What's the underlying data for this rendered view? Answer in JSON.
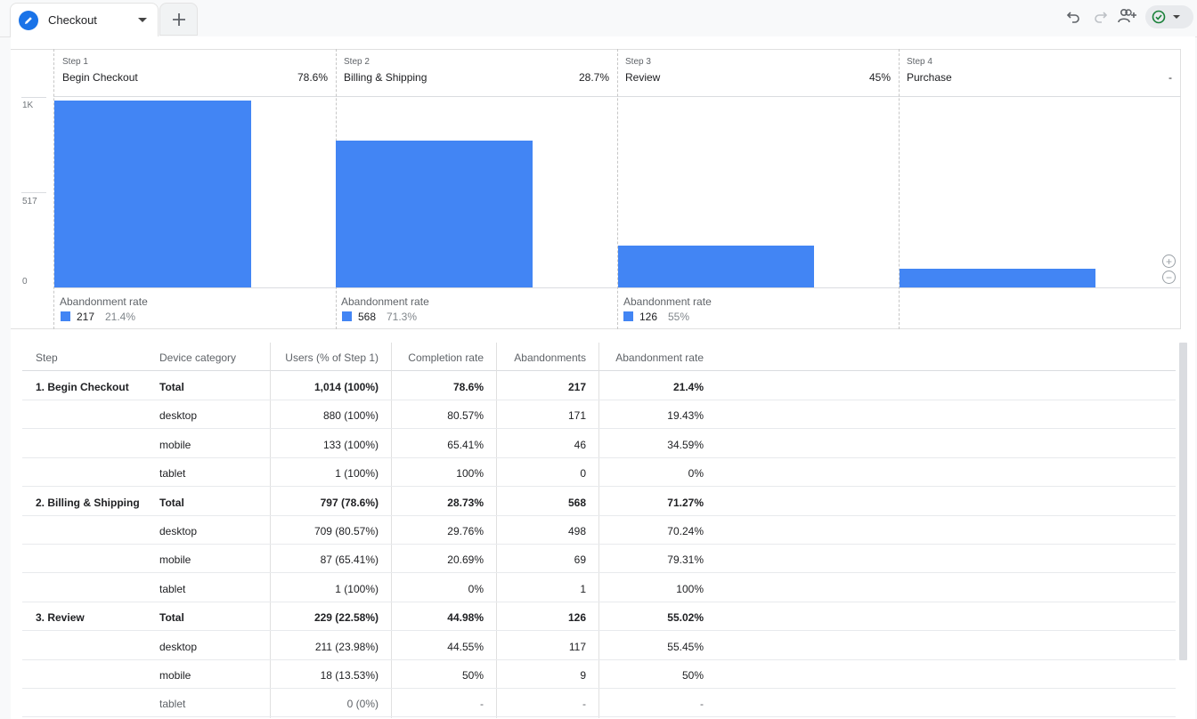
{
  "tabs": {
    "active_label": "Checkout",
    "add_icon": "plus-icon"
  },
  "toolbar": {
    "undo_icon": "undo-icon",
    "redo_icon": "redo-icon",
    "share_icon": "add-person-icon",
    "status_icon": "check-circle-icon"
  },
  "chart_data": {
    "type": "bar",
    "ytick_labels": [
      "1K",
      "517",
      "0"
    ],
    "ylim": [
      0,
      1014
    ],
    "steps": [
      {
        "num": "Step 1",
        "name": "Begin Checkout",
        "rate": "78.6%",
        "users": 1014,
        "abn_label": "Abandonment rate",
        "abn_count": "217",
        "abn_pct": "21.4%"
      },
      {
        "num": "Step 2",
        "name": "Billing & Shipping",
        "rate": "28.7%",
        "users": 797,
        "abn_label": "Abandonment rate",
        "abn_count": "568",
        "abn_pct": "71.3%"
      },
      {
        "num": "Step 3",
        "name": "Review",
        "rate": "45%",
        "users": 229,
        "abn_label": "Abandonment rate",
        "abn_count": "126",
        "abn_pct": "55%"
      },
      {
        "num": "Step 4",
        "name": "Purchase",
        "rate": "-",
        "users": 103,
        "abn_label": "",
        "abn_count": "",
        "abn_pct": ""
      }
    ],
    "bar_color": "#4285f4"
  },
  "table": {
    "headers": [
      "Step",
      "Device category",
      "Users (% of Step 1)",
      "Completion rate",
      "Abandonments",
      "Abandonment rate"
    ],
    "rows": [
      {
        "step": "1. Begin Checkout",
        "device": "Total",
        "users": "1,014 (100%)",
        "completion": "78.6%",
        "abandonments": "217",
        "abn_rate": "21.4%"
      },
      {
        "step": "",
        "device": "desktop",
        "users": "880 (100%)",
        "completion": "80.57%",
        "abandonments": "171",
        "abn_rate": "19.43%"
      },
      {
        "step": "",
        "device": "mobile",
        "users": "133 (100%)",
        "completion": "65.41%",
        "abandonments": "46",
        "abn_rate": "34.59%"
      },
      {
        "step": "",
        "device": "tablet",
        "users": "1 (100%)",
        "completion": "100%",
        "abandonments": "0",
        "abn_rate": "0%"
      },
      {
        "step": "2. Billing & Shipping",
        "device": "Total",
        "users": "797 (78.6%)",
        "completion": "28.73%",
        "abandonments": "568",
        "abn_rate": "71.27%"
      },
      {
        "step": "",
        "device": "desktop",
        "users": "709 (80.57%)",
        "completion": "29.76%",
        "abandonments": "498",
        "abn_rate": "70.24%"
      },
      {
        "step": "",
        "device": "mobile",
        "users": "87 (65.41%)",
        "completion": "20.69%",
        "abandonments": "69",
        "abn_rate": "79.31%"
      },
      {
        "step": "",
        "device": "tablet",
        "users": "1 (100%)",
        "completion": "0%",
        "abandonments": "1",
        "abn_rate": "100%"
      },
      {
        "step": "3. Review",
        "device": "Total",
        "users": "229 (22.58%)",
        "completion": "44.98%",
        "abandonments": "126",
        "abn_rate": "55.02%"
      },
      {
        "step": "",
        "device": "desktop",
        "users": "211 (23.98%)",
        "completion": "44.55%",
        "abandonments": "117",
        "abn_rate": "55.45%"
      },
      {
        "step": "",
        "device": "mobile",
        "users": "18 (13.53%)",
        "completion": "50%",
        "abandonments": "9",
        "abn_rate": "50%"
      },
      {
        "step": "",
        "device": "tablet",
        "users": "0 (0%)",
        "completion": "-",
        "abandonments": "-",
        "abn_rate": "-"
      }
    ]
  }
}
